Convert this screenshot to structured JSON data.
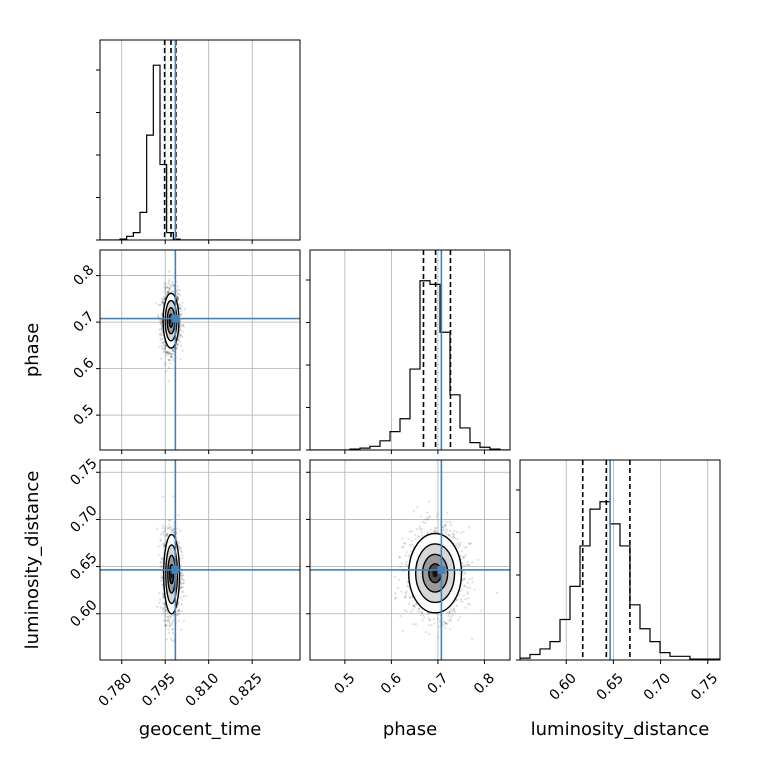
{
  "chart_data": {
    "type": "corner",
    "parameters": [
      "geocent_time",
      "phase",
      "luminosity_distance"
    ],
    "axis_labels": {
      "geocent_time": "geocent_time",
      "phase": "phase",
      "luminosity_distance": "luminosity_distance"
    },
    "truths": {
      "geocent_time": 0.7985,
      "phase": 0.7075,
      "luminosity_distance": 0.6465
    },
    "ranges": {
      "geocent_time": [
        0.7725,
        0.8415
      ],
      "phase": [
        0.425,
        0.855
      ],
      "luminosity_distance": [
        0.551,
        0.763
      ]
    },
    "ticks": {
      "geocent_time": {
        "values": [
          0.78,
          0.795,
          0.81,
          0.825
        ],
        "labels": [
          "0.780",
          "0.795",
          "0.810",
          "0.825"
        ]
      },
      "phase": {
        "values": [
          0.5,
          0.6,
          0.7,
          0.8
        ],
        "labels": [
          "0.5",
          "0.6",
          "0.7",
          "0.8"
        ]
      },
      "luminosity_distance": {
        "values": [
          0.6,
          0.65,
          0.7,
          0.75
        ],
        "labels": [
          "0.60",
          "0.65",
          "0.70",
          "0.75"
        ]
      }
    },
    "diagonal": [
      {
        "parameter": "geocent_time",
        "quantiles": [
          0.7948,
          0.797,
          0.7987
        ],
        "bin_edges": [
          0.7725,
          0.7748,
          0.7771,
          0.7794,
          0.7817,
          0.784,
          0.7863,
          0.7886,
          0.7909,
          0.7932,
          0.7955,
          0.7978,
          0.8001,
          0.8024,
          0.8047,
          0.807,
          0.8093,
          0.8116,
          0.8139,
          0.8162,
          0.8185,
          0.8208
        ],
        "counts": [
          0,
          0,
          0,
          0.005,
          0.02,
          0.04,
          0.15,
          0.57,
          0.95,
          0.41,
          0.04,
          0.005,
          0,
          0,
          0,
          0,
          0,
          0,
          0,
          0,
          0
        ]
      },
      {
        "parameter": "phase",
        "quantiles": [
          0.669,
          0.695,
          0.727
        ],
        "bin_edges": [
          0.425,
          0.4465,
          0.468,
          0.4895,
          0.511,
          0.5325,
          0.554,
          0.5755,
          0.597,
          0.6185,
          0.64,
          0.6615,
          0.683,
          0.7045,
          0.726,
          0.7475,
          0.769,
          0.7905,
          0.812,
          0.8335,
          0.855
        ],
        "counts": [
          0,
          0,
          0,
          0,
          0.005,
          0.01,
          0.02,
          0.05,
          0.1,
          0.17,
          0.44,
          0.92,
          0.9,
          0.64,
          0.3,
          0.12,
          0.04,
          0.015,
          0.005,
          0
        ]
      },
      {
        "parameter": "luminosity_distance",
        "quantiles": [
          0.6175,
          0.6425,
          0.6675
        ],
        "bin_edges": [
          0.551,
          0.5616,
          0.5722,
          0.5828,
          0.5934,
          0.604,
          0.6146,
          0.6252,
          0.6358,
          0.6464,
          0.657,
          0.6676,
          0.6782,
          0.6888,
          0.6994,
          0.71,
          0.7206,
          0.7312,
          0.7418,
          0.7524,
          0.763
        ],
        "counts": [
          0.01,
          0.03,
          0.06,
          0.1,
          0.22,
          0.4,
          0.62,
          0.82,
          0.86,
          0.74,
          0.62,
          0.3,
          0.17,
          0.1,
          0.04,
          0.02,
          0.02,
          0.005,
          0.005,
          0.005
        ]
      }
    ],
    "pairs": [
      {
        "x": "geocent_time",
        "y": "phase",
        "center": [
          0.797,
          0.703
        ],
        "sigma": [
          0.0013,
          0.028
        ]
      },
      {
        "x": "geocent_time",
        "y": "luminosity_distance",
        "center": [
          0.7972,
          0.642
        ],
        "sigma": [
          0.0013,
          0.02
        ]
      },
      {
        "x": "phase",
        "y": "luminosity_distance",
        "center": [
          0.694,
          0.643
        ],
        "sigma": [
          0.027,
          0.02
        ]
      }
    ],
    "colors": {
      "truth": "#4682b4",
      "hist": "#000000",
      "grid": "#b0b0b0",
      "points": "#000000"
    },
    "grid": true
  }
}
